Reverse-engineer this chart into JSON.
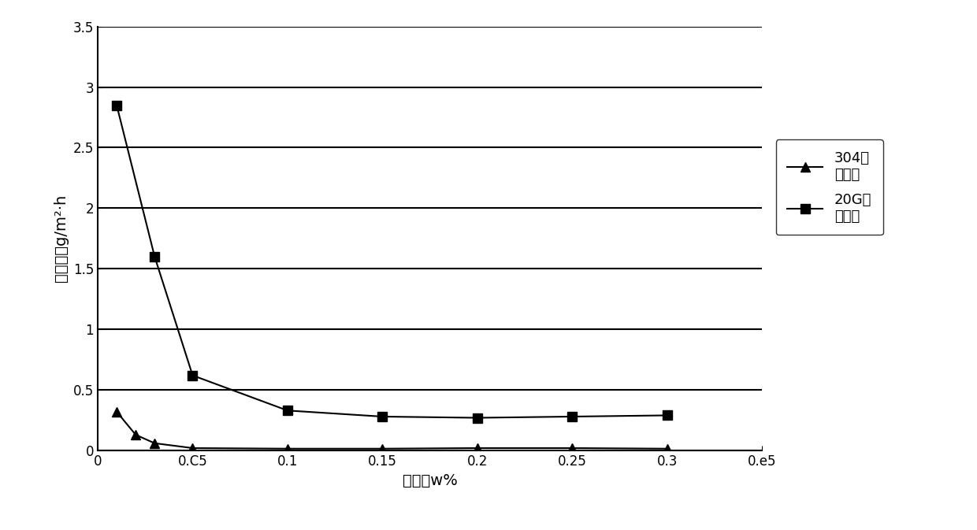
{
  "x_304": [
    0.01,
    0.02,
    0.03,
    0.05,
    0.1,
    0.15,
    0.2,
    0.25,
    0.3
  ],
  "y_304": [
    0.32,
    0.13,
    0.06,
    0.02,
    0.015,
    0.015,
    0.02,
    0.02,
    0.015
  ],
  "x_20G": [
    0.01,
    0.03,
    0.05,
    0.1,
    0.15,
    0.2,
    0.25,
    0.3
  ],
  "y_20G": [
    2.85,
    1.6,
    0.62,
    0.33,
    0.28,
    0.27,
    0.28,
    0.29
  ],
  "xlabel": "乙二醇w%",
  "ylabel": "腑蚀速率g/m²·h",
  "legend_304": "304腑\n蚀速率",
  "legend_20G": "20G材\n质腑蚀",
  "xlim": [
    0,
    0.35
  ],
  "ylim": [
    0,
    3.5
  ],
  "yticks": [
    0,
    0.5,
    1.0,
    1.5,
    2.0,
    2.5,
    3.0,
    3.5
  ],
  "xticks": [
    0,
    0.05,
    0.1,
    0.15,
    0.2,
    0.25,
    0.3,
    0.35
  ],
  "xticklabels": [
    "0",
    "0.C5",
    "0.1",
    "0.15",
    "0.2",
    "0.25",
    "0.3",
    "0.е5"
  ],
  "hlines": [
    0.0,
    0.5,
    1.0,
    1.5,
    2.0,
    2.5,
    3.0,
    3.5
  ],
  "bg_color": "#ffffff",
  "line_color": "#000000",
  "fontsize_axis": 14,
  "fontsize_tick": 12,
  "fontsize_legend": 13
}
